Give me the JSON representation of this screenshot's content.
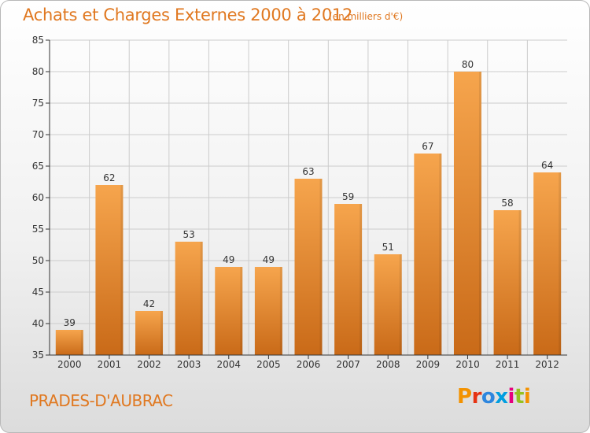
{
  "header": {
    "title": "Achats et Charges Externes 2000 à 2012",
    "subtitle": "(en milliers d'€)"
  },
  "footer": {
    "town": "PRADES-D'AUBRAC",
    "logo": "Proxiti",
    "logo_colors": [
      "#f39200",
      "#e63312",
      "#2e86de",
      "#009ee0",
      "#e6007e",
      "#95c11f",
      "#f39200"
    ]
  },
  "colors": {
    "bar_light": "#f6a54d",
    "bar_dark": "#c96a18",
    "text_orange": "#e07820",
    "axis": "#333333",
    "grid": "#cccccc"
  },
  "chart_data": {
    "type": "bar",
    "categories": [
      "2000",
      "2001",
      "2002",
      "2003",
      "2004",
      "2005",
      "2006",
      "2007",
      "2008",
      "2009",
      "2010",
      "2011",
      "2012"
    ],
    "values": [
      39,
      62,
      42,
      53,
      49,
      49,
      63,
      59,
      51,
      67,
      80,
      58,
      64
    ],
    "ylim": [
      35,
      85
    ],
    "yticks": [
      35,
      40,
      45,
      50,
      55,
      60,
      65,
      70,
      75,
      80,
      85
    ],
    "grid": true,
    "xlabel": "",
    "ylabel": ""
  }
}
